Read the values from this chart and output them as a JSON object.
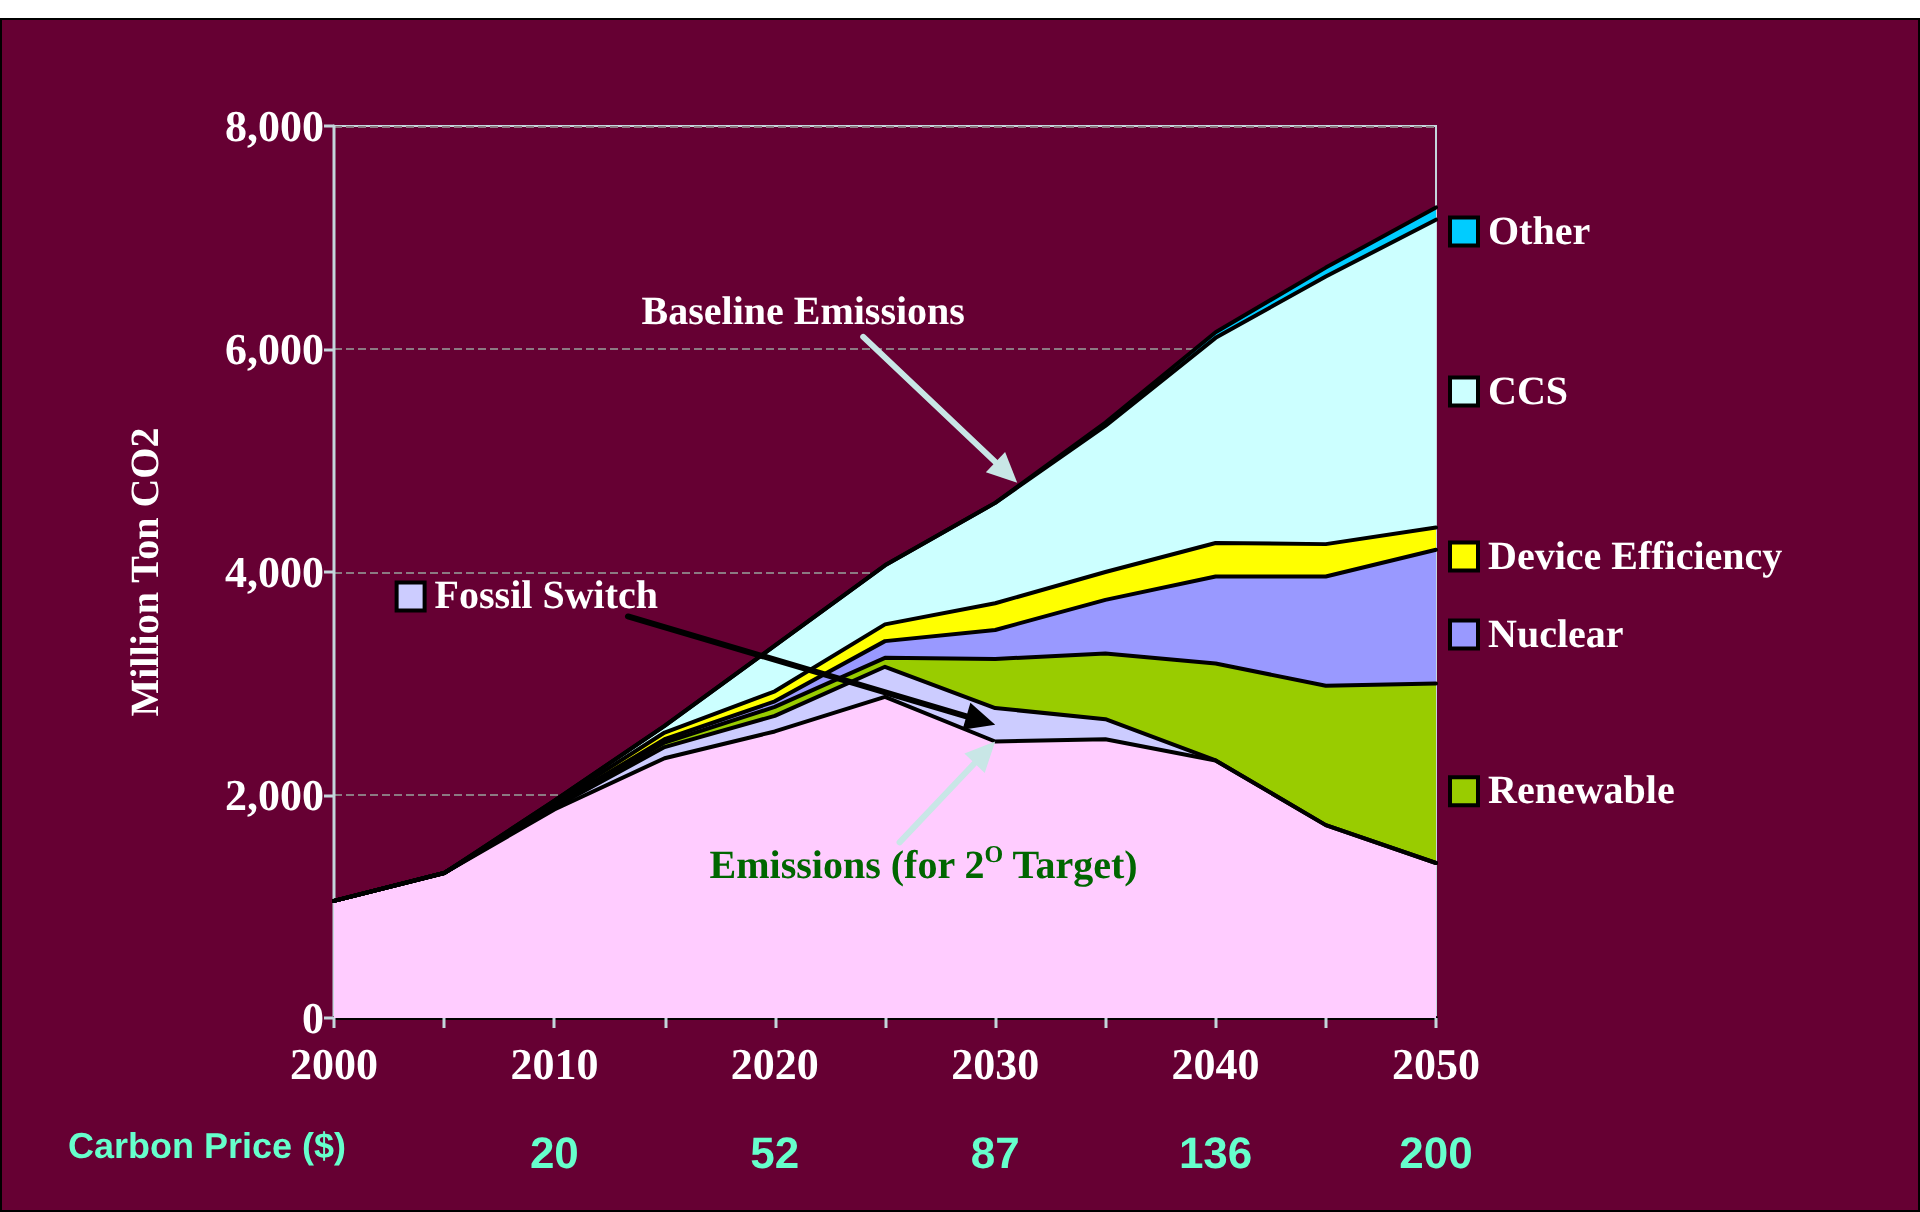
{
  "chart_data": {
    "type": "area",
    "stacked": true,
    "x": [
      2000,
      2005,
      2010,
      2015,
      2020,
      2025,
      2030,
      2035,
      2040,
      2045,
      2050
    ],
    "ylabel": "Million Ton CO2",
    "xlim": [
      2000,
      2050
    ],
    "xticks": [
      2000,
      {
        "value": 2005,
        "label": null
      },
      2010,
      {
        "value": 2015,
        "label": null
      },
      2020,
      {
        "value": 2025,
        "label": null
      },
      2030,
      {
        "value": 2035,
        "label": null
      },
      2040,
      {
        "value": 2045,
        "label": null
      },
      2050
    ],
    "ylim": [
      0,
      8000
    ],
    "yticks": [
      0,
      {
        "value": 2000,
        "label": "2,000"
      },
      {
        "value": 4000,
        "label": "4,000"
      },
      {
        "value": 6000,
        "label": "6,000"
      },
      {
        "value": 8000,
        "label": "8,000"
      }
    ],
    "grid": "y",
    "legend": "right",
    "series": [
      {
        "name": "Emissions (for 2$^{O}$ Target)",
        "color": "#ffccff",
        "values": [
          1050,
          1300,
          1870,
          2330,
          2570,
          2880,
          2480,
          2500,
          2310,
          1730,
          1390
        ]
      },
      {
        "name": "Fossil Switch",
        "color": "#ccccff",
        "values": [
          0,
          0,
          20,
          100,
          140,
          270,
          300,
          180,
          0,
          0,
          0
        ]
      },
      {
        "name": "Renewable",
        "color": "#99cc00",
        "values": [
          0,
          0,
          10,
          40,
          80,
          80,
          440,
          590,
          870,
          1250,
          1610
        ]
      },
      {
        "name": "Nuclear",
        "color": "#9999ff",
        "values": [
          0,
          0,
          10,
          30,
          50,
          150,
          260,
          480,
          780,
          980,
          1200
        ]
      },
      {
        "name": "Device Efficiency",
        "color": "#ffff00",
        "values": [
          0,
          0,
          20,
          60,
          90,
          150,
          240,
          250,
          300,
          290,
          200
        ]
      },
      {
        "name": "CCS",
        "color": "#ccffff",
        "values": [
          0,
          0,
          20,
          60,
          410,
          530,
          900,
          1310,
          1840,
          2400,
          2760
        ]
      },
      {
        "name": "Other",
        "color": "#00ccff",
        "values": [
          0,
          0,
          0,
          0,
          0,
          0,
          0,
          30,
          50,
          80,
          110
        ]
      }
    ],
    "annotations": [
      "Baseline Emissions",
      "Carbon Price ($)",
      "20",
      "52",
      "87",
      "136",
      "200"
    ]
  }
}
